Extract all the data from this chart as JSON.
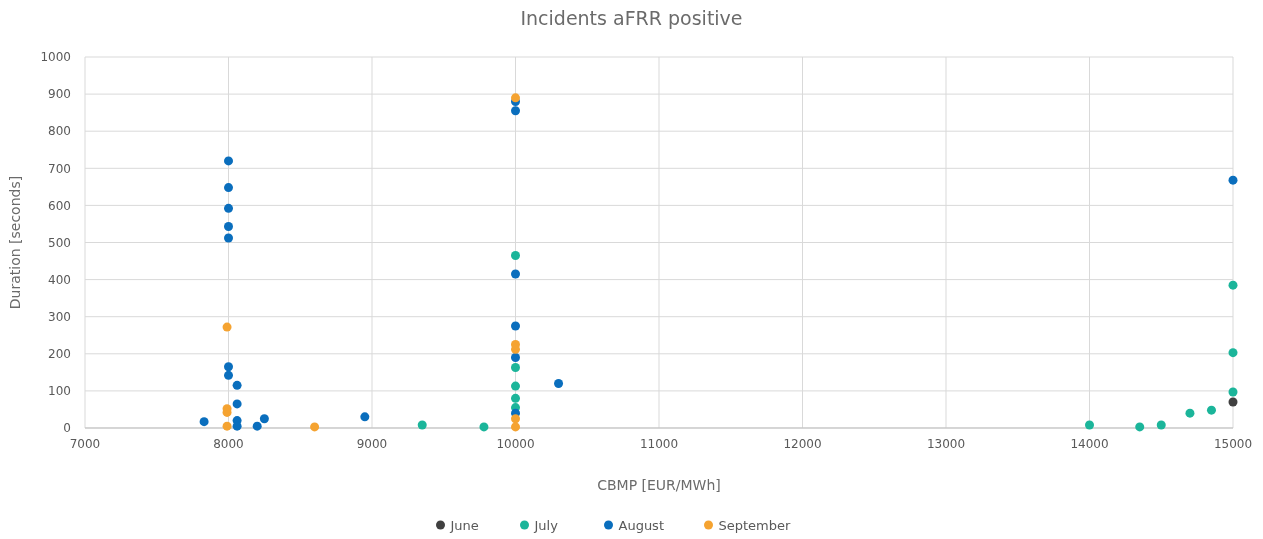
{
  "chart_data": {
    "type": "scatter",
    "title": "Incidents aFRR positive",
    "xlabel": "CBMP [EUR/MWh]",
    "ylabel": "Duration [seconds]",
    "xlim": [
      7000,
      15000
    ],
    "xticks": [
      7000,
      8000,
      9000,
      10000,
      11000,
      12000,
      13000,
      14000,
      15000
    ],
    "ylim": [
      0,
      1000
    ],
    "yticks": [
      0,
      100,
      200,
      300,
      400,
      500,
      600,
      700,
      800,
      900,
      1000
    ],
    "grid": true,
    "legend": "bottom",
    "marker": "circle",
    "series": [
      {
        "name": "June",
        "color": "#404040",
        "x": [
          15000
        ],
        "values": [
          70
        ]
      },
      {
        "name": "July",
        "color": "#1bb59a",
        "x": [
          9350,
          9780,
          10000,
          10000,
          10000,
          10000,
          10000,
          14000,
          14350,
          14500,
          14700,
          14850,
          15000,
          15000,
          15000
        ],
        "values": [
          8,
          3,
          465,
          163,
          113,
          80,
          55,
          8,
          3,
          8,
          40,
          48,
          385,
          203,
          97
        ]
      },
      {
        "name": "August",
        "color": "#0a6ebd",
        "x": [
          7830,
          8000,
          8000,
          8000,
          8000,
          8000,
          8000,
          8000,
          8060,
          8060,
          8060,
          8060,
          8200,
          8250,
          8950,
          10000,
          10000,
          10000,
          10000,
          10000,
          10000,
          10300,
          15000
        ],
        "values": [
          17,
          720,
          648,
          592,
          543,
          512,
          165,
          142,
          115,
          65,
          20,
          5,
          5,
          25,
          30,
          880,
          855,
          415,
          275,
          190,
          40,
          120,
          668
        ]
      },
      {
        "name": "September",
        "color": "#f5a331",
        "x": [
          7990,
          7990,
          7990,
          7990,
          8600,
          10000,
          10000,
          10000,
          10000,
          10000
        ],
        "values": [
          272,
          52,
          42,
          5,
          3,
          890,
          225,
          212,
          25,
          3
        ]
      }
    ]
  }
}
